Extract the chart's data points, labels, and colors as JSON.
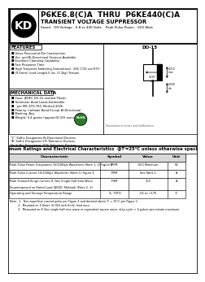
{
  "title_part": "P6KE6.8(C)A  THRU  P6KE440(C)A",
  "title_sub": "TRANSIENT VOLTAGE SUPPRESSOR",
  "title_detail": "Stand - Off Voltage - 6.8 to 440 Volts    Peak Pulse Power - 600 Watt",
  "features_title": "FEATURES",
  "features": [
    "Glass Passivated Die Construction",
    "Uni- and Bi-Directional Versions Available",
    "Excellent Clamping Capability",
    "Fast Response Time",
    "High Temperat Soldering Guaranteed : 265 C/10 sec/375°",
    "(9.5mm) Lead Length,5 lbs. (2.3kg) Tension"
  ],
  "mech_title": "MECHANICAL DATA",
  "mech": [
    "Case: JEDEC DO-15 molded Plastic",
    "Terminals: Axial Leads,Solderable",
    "  per MIL-STD-750, Method 2026",
    "Polarity: Cathode Band Except Bi-Directional",
    "Marking: Any",
    "Weight: 0.4 grams (approx)(0.015 ounce"
  ],
  "suffix_notes": [
    "“C” Suffix Designates Bi-Directional Devices",
    "“A” Suffix Designates 5% Tolerance Devices",
    "No Suffix Designates 10% Tolerance Devices"
  ],
  "diode_label": "DO-15",
  "table_title": "Maximum Ratings and Electrical Characteristics",
  "table_subtitle": "@Tⁱ=25°C unless otherwise specified",
  "table_headers": [
    "Characteristic",
    "Symbol",
    "Value",
    "Unit"
  ],
  "table_rows": [
    [
      "Peak Pulse Power Dissipation 10/1000μs Waveform (Note 1, 2) Figure 3",
      "PPPM",
      "600 Minimum",
      "W"
    ],
    [
      "Peak Pulse Current 10/1000μs Waveform (Note 1) Figure 4",
      "IPPM",
      "See Table 1",
      "A"
    ],
    [
      "Peak Forward Surge Current 8.3ms Single Half Sine-Wave\nSuperimposed on Rated Load (JEDEC Method) (Note 2, 3)",
      "IFSM",
      "100",
      "A"
    ],
    [
      "Operating and Storage Temperature Range",
      "TL, TSTG",
      "-55 to +175",
      "°C"
    ]
  ],
  "notes": [
    "Note:  1.  Non-repetitive current pulse per Figure 4 and derated above Tⁱ = 25°C per Figure 1.",
    "         2.  Mounted on 5.0mm² (0.010 inch thick) land area.",
    "         3.  Measured on 8.3ms single half-sine-wave or equivalent square wave, duty cycle = 4 pulses per minute maximum."
  ]
}
